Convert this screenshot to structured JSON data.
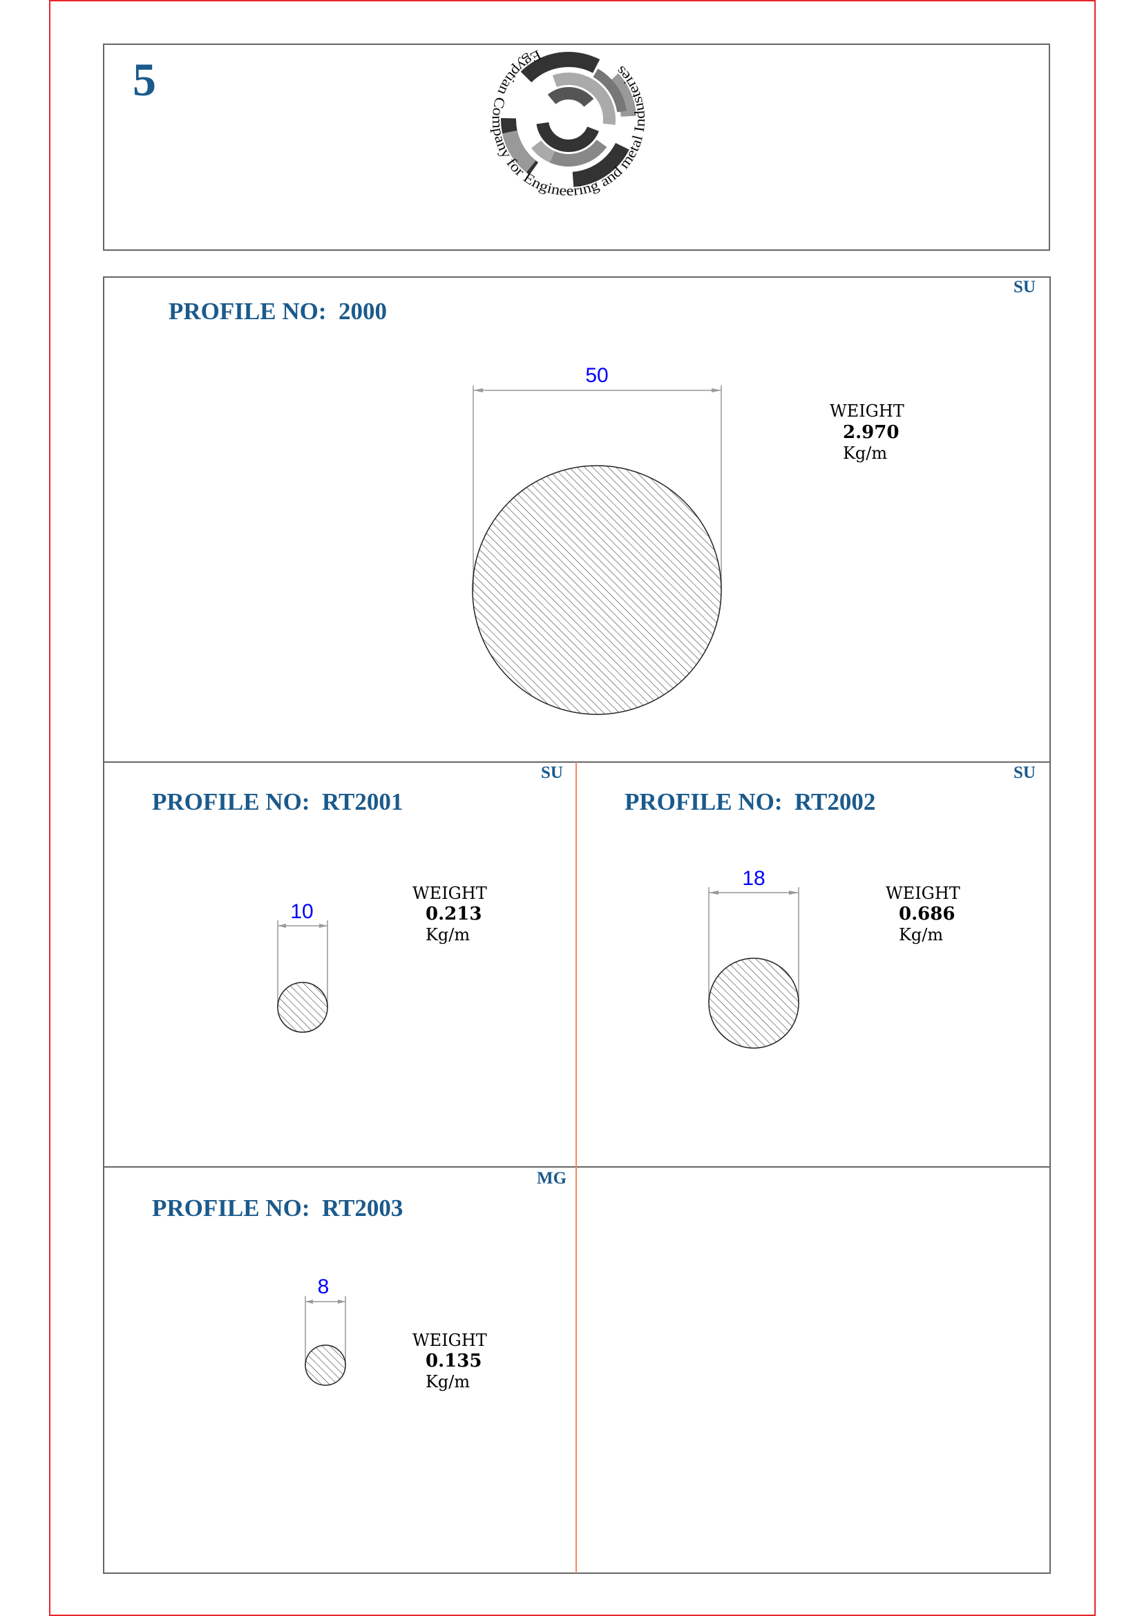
{
  "page": {
    "number": "5",
    "border_color": "#e8232a",
    "title_color": "#1b5a8c",
    "dimension_color": "#0000ff"
  },
  "logo": {
    "text": "Egyptian Company for Engineering and metal Industeries"
  },
  "profiles": [
    {
      "title": "PROFILE NO:  2000",
      "tag": "SU",
      "diameter": "50",
      "weight_label": "WEIGHT",
      "weight": "2.970",
      "unit": "Kg/m"
    },
    {
      "title": "PROFILE NO:  RT2001",
      "tag": "SU",
      "diameter": "10",
      "weight_label": "WEIGHT",
      "weight": "0.213",
      "unit": "Kg/m"
    },
    {
      "title": "PROFILE NO:  RT2002",
      "tag": "SU",
      "diameter": "18",
      "weight_label": "WEIGHT",
      "weight": "0.686",
      "unit": "Kg/m"
    },
    {
      "title": "PROFILE NO:  RT2003",
      "tag": "MG",
      "diameter": "8",
      "weight_label": "WEIGHT",
      "weight": "0.135",
      "unit": "Kg/m"
    }
  ]
}
